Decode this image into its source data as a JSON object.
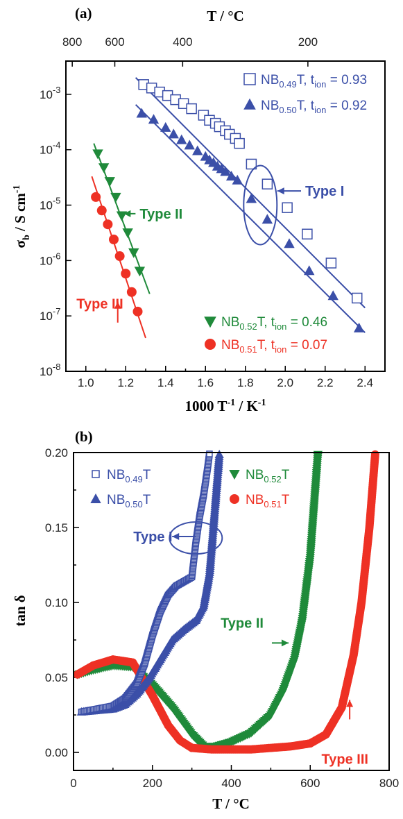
{
  "colors": {
    "blue": "#3b4fa8",
    "green": "#1f8a3a",
    "red": "#ee3124"
  },
  "chart_data": [
    {
      "panel_label": "(a)",
      "type": "scatter",
      "xlabel_base": "1000 T",
      "xlabel_sup1": "-1",
      "xlabel_mid": " / K",
      "xlabel_sup2": "-1",
      "ylabel_sym": "σ",
      "ylabel_sub": "b",
      "ylabel_rest": " / S cm",
      "ylabel_sup": "-1",
      "top_axis_label": "T / °C",
      "top_ticks": [
        "800",
        "600",
        "400",
        "200"
      ],
      "top_tick_celsius": [
        800,
        600,
        400,
        200
      ],
      "xlim": [
        0.9,
        2.5
      ],
      "ylim_log10": [
        -8,
        -2.4
      ],
      "yscale": "log",
      "x_ticks": [
        "1.0",
        "1.2",
        "1.4",
        "1.6",
        "1.8",
        "2.0",
        "2.2",
        "2.4"
      ],
      "y_ticks": [
        {
          "base": "10",
          "exp": "-3"
        },
        {
          "base": "10",
          "exp": "-4"
        },
        {
          "base": "10",
          "exp": "-5"
        },
        {
          "base": "10",
          "exp": "-6"
        },
        {
          "base": "10",
          "exp": "-7"
        },
        {
          "base": "10",
          "exp": "-8"
        }
      ],
      "series": [
        {
          "legend_name": "NB",
          "legend_sub": "0.49",
          "legend_suffix": "T, t",
          "legend_ion": "ion",
          "legend_value": " = 0.93",
          "marker": "open-square",
          "color": "#3b4fa8",
          "x": [
            1.29,
            1.33,
            1.37,
            1.41,
            1.45,
            1.49,
            1.53,
            1.59,
            1.62,
            1.65,
            1.67,
            1.7,
            1.72,
            1.75,
            1.77,
            1.83,
            1.91,
            2.01,
            2.11,
            2.23,
            2.36
          ],
          "y": [
            0.0015,
            0.0013,
            0.0011,
            0.00095,
            0.0008,
            0.00068,
            0.00055,
            0.00042,
            0.00034,
            0.0003,
            0.00026,
            0.00022,
            0.00019,
            0.00016,
            0.00013,
            5.5e-05,
            2.4e-05,
            9e-06,
            3e-06,
            9e-07,
            2.1e-07
          ],
          "fit_x": [
            1.25,
            2.4
          ],
          "fit_y": [
            0.002,
            1.4e-07
          ]
        },
        {
          "legend_name": "NB",
          "legend_sub": "0.50",
          "legend_suffix": "T, t",
          "legend_ion": "ion",
          "legend_value": " = 0.92",
          "marker": "filled-triangle-up",
          "color": "#3b4fa8",
          "x": [
            1.28,
            1.34,
            1.4,
            1.44,
            1.48,
            1.52,
            1.56,
            1.6,
            1.62,
            1.64,
            1.66,
            1.68,
            1.7,
            1.73,
            1.76,
            1.83,
            1.91,
            2.02,
            2.12,
            2.24,
            2.37
          ],
          "y": [
            0.00045,
            0.00035,
            0.00025,
            0.00019,
            0.00015,
            0.00012,
            9.5e-05,
            7.5e-05,
            6.5e-05,
            5.8e-05,
            5e-05,
            4.5e-05,
            4e-05,
            3.3e-05,
            2.8e-05,
            1.3e-05,
            5.5e-06,
            2e-06,
            6.5e-07,
            2.3e-07,
            6e-08
          ],
          "fit_x": [
            1.25,
            2.4
          ],
          "fit_y": [
            0.00065,
            5e-08
          ]
        },
        {
          "legend_name": "NB",
          "legend_sub": "0.52",
          "legend_suffix": "T, t",
          "legend_ion": "ion",
          "legend_value": " = 0.46",
          "marker": "filled-triangle-down",
          "color": "#1f8a3a",
          "x": [
            1.06,
            1.09,
            1.12,
            1.15,
            1.18,
            1.21,
            1.24,
            1.27
          ],
          "y": [
            8.5e-05,
            4.8e-05,
            2.7e-05,
            1.4e-05,
            6.5e-06,
            3.2e-06,
            1.4e-06,
            6.5e-07
          ],
          "fit_x": [
            1.04,
            1.32
          ],
          "fit_y": [
            0.00013,
            2.5e-07
          ]
        },
        {
          "legend_name": "NB",
          "legend_sub": "0.51",
          "legend_suffix": "T, t",
          "legend_ion": "ion",
          "legend_value": " = 0.07",
          "marker": "filled-circle",
          "color": "#ee3124",
          "x": [
            1.05,
            1.08,
            1.11,
            1.14,
            1.17,
            1.2,
            1.23,
            1.26
          ],
          "y": [
            1.4e-05,
            8e-06,
            4.5e-06,
            2.4e-06,
            1.2e-06,
            5.8e-07,
            2.7e-07,
            1.2e-07
          ],
          "fit_x": [
            1.03,
            1.3
          ],
          "fit_y": [
            3.3e-05,
            4e-08
          ]
        }
      ],
      "annotations": [
        {
          "text": "Type I",
          "color": "#3b4fa8",
          "arrow_to": [
            1.96,
            1.8e-05
          ],
          "label_at": [
            2.1,
            1.8e-05
          ],
          "ellipse": {
            "cx": 1.875,
            "cy": 1e-05
          }
        },
        {
          "text": "Type II",
          "color": "#1f8a3a",
          "arrow_to": [
            1.19,
            7e-06
          ],
          "label_at": [
            1.27,
            6.2e-06
          ]
        },
        {
          "text": "Type III",
          "color": "#ee3124",
          "arrow_to": [
            1.16,
            1.8e-07
          ],
          "label_at": [
            1.04,
            3.2e-08
          ]
        }
      ]
    },
    {
      "panel_label": "(b)",
      "type": "scatter",
      "xlabel": "T / °C",
      "ylabel": "tan δ",
      "xlim": [
        0,
        800
      ],
      "ylim": [
        -0.012,
        0.2
      ],
      "x_ticks": [
        "0",
        "200",
        "400",
        "600",
        "800"
      ],
      "y_ticks": [
        "0.00",
        "0.05",
        "0.10",
        "0.15",
        "0.20"
      ],
      "series": [
        {
          "legend_name": "NB",
          "legend_sub": "0.49",
          "legend_suffix": "T",
          "marker": "open-square",
          "color": "#3b4fa8",
          "x": [
            20,
            60,
            100,
            130,
            160,
            180,
            200,
            220,
            240,
            260,
            280,
            300,
            310,
            320,
            330,
            340,
            345
          ],
          "y": [
            0.027,
            0.029,
            0.031,
            0.036,
            0.046,
            0.059,
            0.078,
            0.094,
            0.105,
            0.111,
            0.114,
            0.117,
            0.14,
            0.158,
            0.172,
            0.19,
            0.2
          ]
        },
        {
          "legend_name": "NB",
          "legend_sub": "0.50",
          "legend_suffix": "T",
          "marker": "filled-triangle-up",
          "color": "#3b4fa8",
          "x": [
            20,
            60,
            100,
            130,
            160,
            190,
            220,
            250,
            280,
            310,
            330,
            345,
            360,
            370
          ],
          "y": [
            0.027,
            0.028,
            0.029,
            0.032,
            0.039,
            0.049,
            0.062,
            0.075,
            0.082,
            0.088,
            0.098,
            0.12,
            0.168,
            0.2
          ]
        },
        {
          "legend_name": "NB",
          "legend_sub": "0.52",
          "legend_suffix": "T",
          "marker": "filled-triangle-down",
          "color": "#1f8a3a",
          "x": [
            10,
            50,
            100,
            150,
            200,
            250,
            300,
            330,
            360,
            400,
            450,
            500,
            530,
            560,
            580,
            600,
            610,
            620
          ],
          "y": [
            0.052,
            0.055,
            0.058,
            0.057,
            0.045,
            0.03,
            0.012,
            0.004,
            0.004,
            0.007,
            0.013,
            0.025,
            0.04,
            0.062,
            0.088,
            0.13,
            0.165,
            0.2
          ]
        },
        {
          "legend_name": "NB",
          "legend_sub": "0.51",
          "legend_suffix": "T",
          "marker": "filled-circle",
          "color": "#ee3124",
          "x": [
            10,
            50,
            100,
            150,
            200,
            240,
            270,
            300,
            350,
            400,
            450,
            500,
            550,
            600,
            640,
            680,
            710,
            730,
            750,
            765
          ],
          "y": [
            0.052,
            0.058,
            0.062,
            0.06,
            0.038,
            0.018,
            0.008,
            0.003,
            0.002,
            0.002,
            0.002,
            0.003,
            0.004,
            0.006,
            0.012,
            0.03,
            0.065,
            0.1,
            0.15,
            0.2
          ]
        }
      ],
      "annotations": [
        {
          "text": "Type I",
          "color": "#3b4fa8",
          "arrow_to": [
            250,
            0.144
          ],
          "label_at": [
            113,
            0.144
          ],
          "ellipse": {
            "cx": 310,
            "cy": 0.143
          }
        },
        {
          "text": "Type II",
          "color": "#1f8a3a",
          "arrow_to": [
            545,
            0.073
          ],
          "label_at": [
            510,
            0.085
          ]
        },
        {
          "text": "Type III",
          "color": "#ee3124",
          "arrow_to": [
            700,
            0.035
          ],
          "label_at": [
            713,
            -0.004
          ]
        }
      ]
    }
  ]
}
